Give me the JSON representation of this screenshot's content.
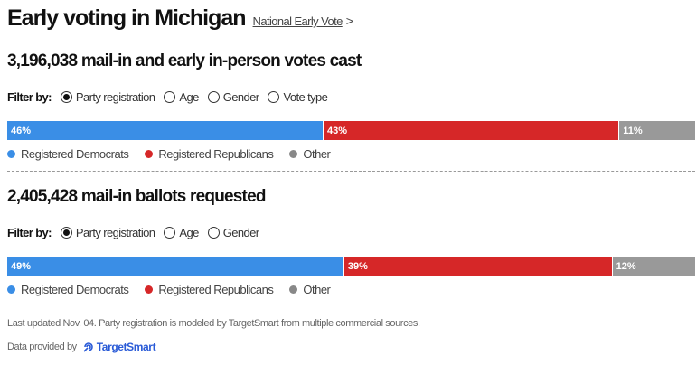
{
  "header": {
    "title": "Early voting in Michigan",
    "link": "National Early Vote",
    "chevron": ">"
  },
  "sections": [
    {
      "count": "3,196,038",
      "label": "mail-in and early in-person votes cast",
      "filter_label": "Filter by:",
      "options": [
        {
          "label": "Party registration",
          "selected": true
        },
        {
          "label": "Age",
          "selected": false
        },
        {
          "label": "Gender",
          "selected": false
        },
        {
          "label": "Vote type",
          "selected": false
        }
      ],
      "bar": [
        {
          "label": "46%",
          "value": 46,
          "color": "#3a8ee6"
        },
        {
          "label": "43%",
          "value": 43,
          "color": "#d62728"
        },
        {
          "label": "11%",
          "value": 11,
          "color": "#999999"
        }
      ]
    },
    {
      "count": "2,405,428",
      "label": "mail-in ballots requested",
      "filter_label": "Filter by:",
      "options": [
        {
          "label": "Party registration",
          "selected": true
        },
        {
          "label": "Age",
          "selected": false
        },
        {
          "label": "Gender",
          "selected": false
        }
      ],
      "bar": [
        {
          "label": "49%",
          "value": 49,
          "color": "#3a8ee6"
        },
        {
          "label": "39%",
          "value": 39,
          "color": "#d62728"
        },
        {
          "label": "12%",
          "value": 12,
          "color": "#999999"
        }
      ]
    }
  ],
  "legend": [
    {
      "label": "Registered Democrats",
      "color": "#3a8ee6"
    },
    {
      "label": "Registered Republicans",
      "color": "#d62728"
    },
    {
      "label": "Other",
      "color": "#888888"
    }
  ],
  "footer": {
    "note": "Last updated Nov. 04. Party registration is modeled by TargetSmart from multiple commercial sources.",
    "provided": "Data provided by",
    "logo": "TargetSmart"
  }
}
